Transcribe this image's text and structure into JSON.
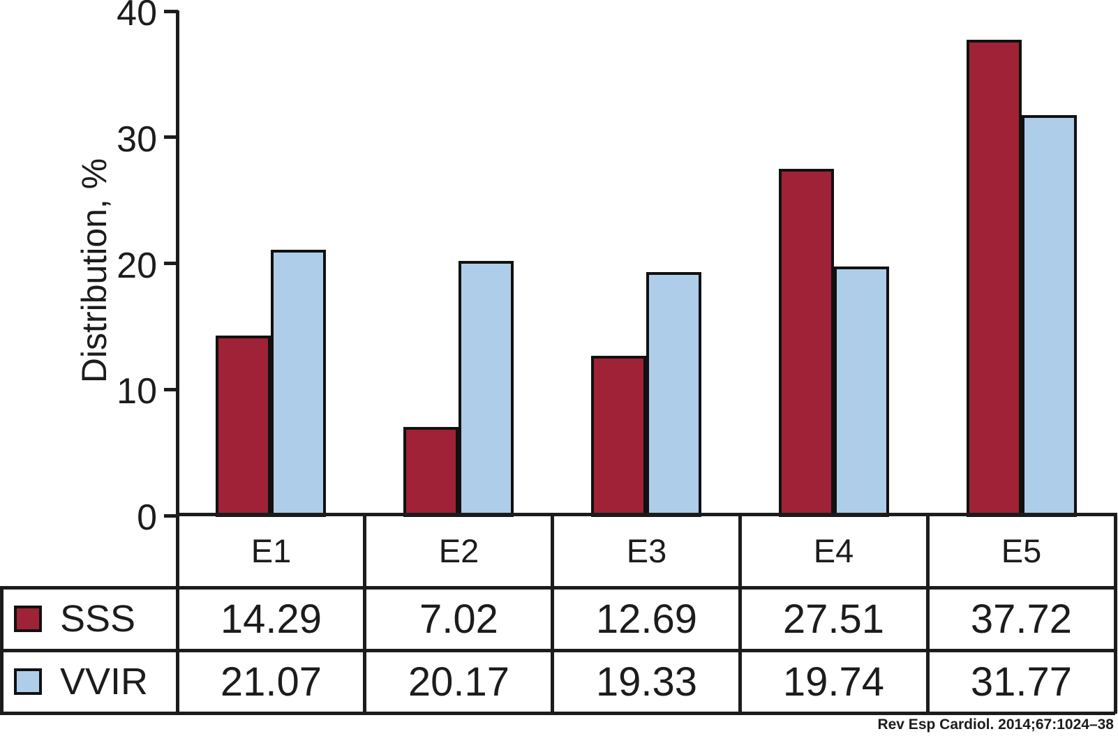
{
  "chart_data": {
    "type": "bar",
    "title": "",
    "ylabel": "Distribution, %",
    "xlabel": "",
    "ylim": [
      0,
      40
    ],
    "yticks": [
      0,
      10,
      20,
      30,
      40
    ],
    "grid": false,
    "legend_position": "table-left",
    "categories": [
      "E1",
      "E2",
      "E3",
      "E4",
      "E5"
    ],
    "series": [
      {
        "name": "SSS",
        "color": "#9f2236",
        "values": [
          14.29,
          7.02,
          12.69,
          27.51,
          37.72
        ]
      },
      {
        "name": "VVIR",
        "color": "#aecde9",
        "values": [
          21.07,
          20.17,
          19.33,
          19.74,
          31.77
        ]
      }
    ]
  },
  "colors": {
    "sss": "#9f2236",
    "vvir": "#aecde9",
    "line": "#1c1c1c",
    "background": "#ffffff"
  },
  "citation": "Rev Esp Cardiol. 2014;67:1024–38"
}
